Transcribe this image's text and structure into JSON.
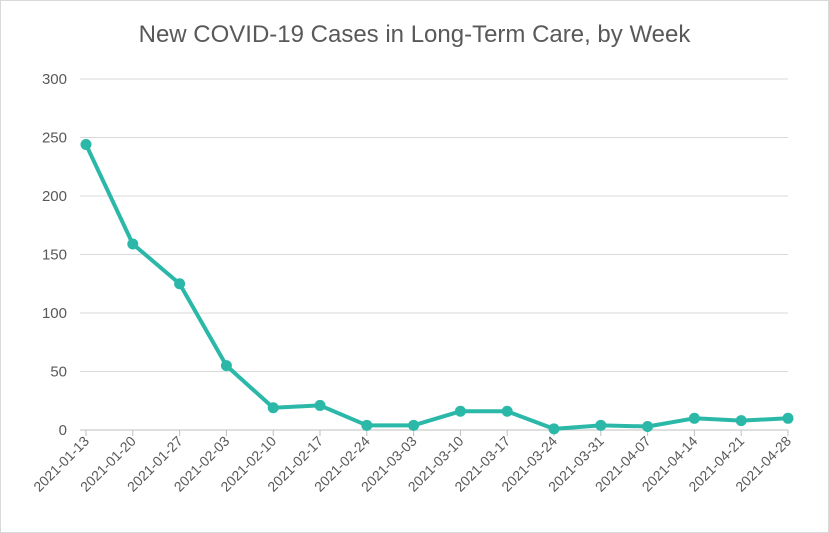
{
  "chart_data": {
    "type": "line",
    "title": "New COVID-19 Cases in Long-Term Care, by Week",
    "xlabel": "",
    "ylabel": "",
    "ylim": [
      0,
      300
    ],
    "yticks": [
      "0",
      "50",
      "100",
      "150",
      "200",
      "250",
      "300"
    ],
    "grid": true,
    "categories": [
      "2021-01-13",
      "2021-01-20",
      "2021-01-27",
      "2021-02-03",
      "2021-02-10",
      "2021-02-17",
      "2021-02-24",
      "2021-03-03",
      "2021-03-10",
      "2021-03-17",
      "2021-03-24",
      "2021-03-31",
      "2021-04-07",
      "2021-04-14",
      "2021-04-21",
      "2021-04-28"
    ],
    "series": [
      {
        "values": [
          244,
          159,
          125,
          55,
          19,
          21,
          4,
          4,
          16,
          16,
          1,
          4,
          3,
          10,
          8,
          10
        ]
      }
    ],
    "colors": {
      "line": "#2bb8a9",
      "grid": "#d9d9d9",
      "text": "#595959"
    }
  }
}
